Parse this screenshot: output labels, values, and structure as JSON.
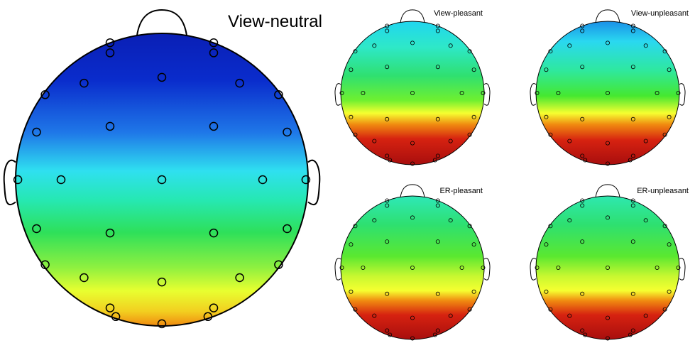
{
  "maps": [
    {
      "title": "View-neutral",
      "gradient": [
        {
          "offset": 0.0,
          "color": "#0a1fb5"
        },
        {
          "offset": 0.16,
          "color": "#0a2ccc"
        },
        {
          "offset": 0.34,
          "color": "#1f78e8"
        },
        {
          "offset": 0.47,
          "color": "#2fe0f0"
        },
        {
          "offset": 0.57,
          "color": "#26e8b2"
        },
        {
          "offset": 0.68,
          "color": "#2ee05a"
        },
        {
          "offset": 0.8,
          "color": "#8ef040"
        },
        {
          "offset": 0.88,
          "color": "#e8ff30"
        },
        {
          "offset": 0.95,
          "color": "#f2cf20"
        },
        {
          "offset": 1.0,
          "color": "#f08a10"
        }
      ]
    },
    {
      "title": "View-pleasant",
      "gradient": [
        {
          "offset": 0.0,
          "color": "#20d6f0"
        },
        {
          "offset": 0.18,
          "color": "#2ee8c8"
        },
        {
          "offset": 0.38,
          "color": "#2fe070"
        },
        {
          "offset": 0.55,
          "color": "#6ef030"
        },
        {
          "offset": 0.64,
          "color": "#f6ff30"
        },
        {
          "offset": 0.72,
          "color": "#f08a10"
        },
        {
          "offset": 0.82,
          "color": "#d62210"
        },
        {
          "offset": 1.0,
          "color": "#a80e0e"
        }
      ]
    },
    {
      "title": "View-unpleasant",
      "gradient": [
        {
          "offset": 0.0,
          "color": "#1a90e8"
        },
        {
          "offset": 0.14,
          "color": "#2ad8f0"
        },
        {
          "offset": 0.34,
          "color": "#2ee8a0"
        },
        {
          "offset": 0.52,
          "color": "#45e830"
        },
        {
          "offset": 0.64,
          "color": "#f6ff30"
        },
        {
          "offset": 0.72,
          "color": "#f08a10"
        },
        {
          "offset": 0.83,
          "color": "#d62210"
        },
        {
          "offset": 1.0,
          "color": "#a80e0e"
        }
      ]
    },
    {
      "title": "ER-pleasant",
      "gradient": [
        {
          "offset": 0.0,
          "color": "#2ee8b8"
        },
        {
          "offset": 0.2,
          "color": "#2ee070"
        },
        {
          "offset": 0.42,
          "color": "#5ae830"
        },
        {
          "offset": 0.56,
          "color": "#c8f830"
        },
        {
          "offset": 0.66,
          "color": "#f6ff30"
        },
        {
          "offset": 0.73,
          "color": "#f08a10"
        },
        {
          "offset": 0.83,
          "color": "#d62210"
        },
        {
          "offset": 1.0,
          "color": "#a80e0e"
        }
      ]
    },
    {
      "title": "ER-unpleasant",
      "gradient": [
        {
          "offset": 0.0,
          "color": "#2ee8b0"
        },
        {
          "offset": 0.2,
          "color": "#2ee070"
        },
        {
          "offset": 0.42,
          "color": "#5ae830"
        },
        {
          "offset": 0.56,
          "color": "#c8f830"
        },
        {
          "offset": 0.66,
          "color": "#f6ff30"
        },
        {
          "offset": 0.73,
          "color": "#f08a10"
        },
        {
          "offset": 0.83,
          "color": "#d62210"
        },
        {
          "offset": 1.0,
          "color": "#a80e0e"
        }
      ]
    }
  ]
}
